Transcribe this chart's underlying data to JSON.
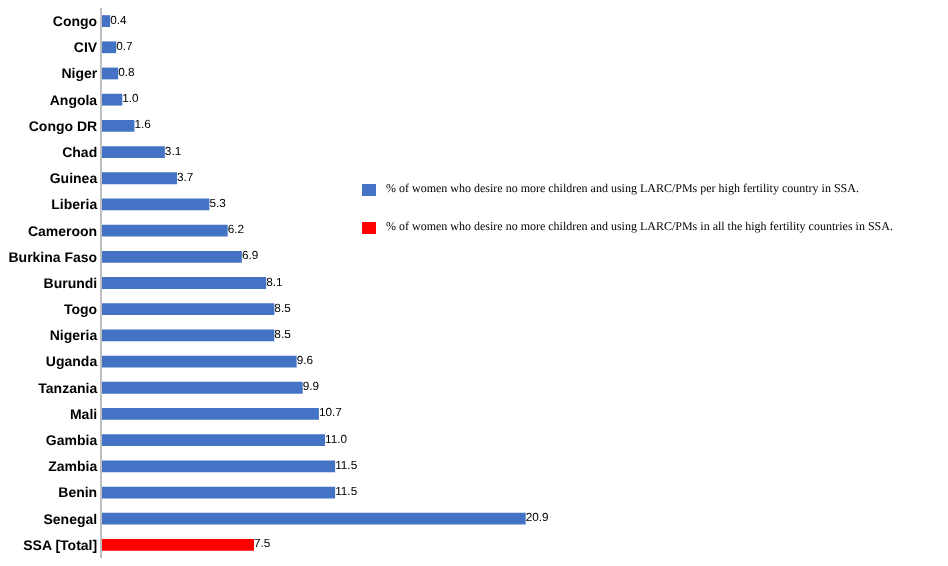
{
  "chart_data": {
    "type": "bar",
    "orientation": "horizontal",
    "categories": [
      "Congo",
      "CIV",
      "Niger",
      "Angola",
      "Congo DR",
      "Chad",
      "Guinea",
      "Liberia",
      "Cameroon",
      "Burkina Faso",
      "Burundi",
      "Togo",
      "Nigeria",
      "Uganda",
      "Tanzania",
      "Mali",
      "Gambia",
      "Zambia",
      "Benin",
      "Senegal",
      "SSA [Total]"
    ],
    "series": [
      {
        "name": "% of women who desire no more children and using LARC/PMs per high fertility country in SSA.",
        "color": "#4472c4",
        "values": [
          0.4,
          0.7,
          0.8,
          1.0,
          1.6,
          3.1,
          3.7,
          5.3,
          6.2,
          6.9,
          8.1,
          8.5,
          8.5,
          9.6,
          9.9,
          10.7,
          11.0,
          11.5,
          11.5,
          20.9,
          null
        ],
        "value_labels": [
          "0.4",
          "0.7",
          "0.8",
          "1.0",
          "1.6",
          "3.1",
          "3.7",
          "5.3",
          "6.2",
          "6.9",
          "8.1",
          "8.5",
          "8.5",
          "9.6",
          "9.9",
          "10.7",
          "11.0",
          "11.5",
          "11.5",
          "20.9",
          null
        ]
      },
      {
        "name": "% of women who desire no more children and using LARC/PMs in all the high fertility countries in SSA.",
        "color": "#ff0000",
        "values": [
          null,
          null,
          null,
          null,
          null,
          null,
          null,
          null,
          null,
          null,
          null,
          null,
          null,
          null,
          null,
          null,
          null,
          null,
          null,
          null,
          7.5
        ],
        "value_labels": [
          null,
          null,
          null,
          null,
          null,
          null,
          null,
          null,
          null,
          null,
          null,
          null,
          null,
          null,
          null,
          null,
          null,
          null,
          null,
          null,
          "7.5"
        ]
      }
    ],
    "tick_labels": "y",
    "legend": "right"
  }
}
